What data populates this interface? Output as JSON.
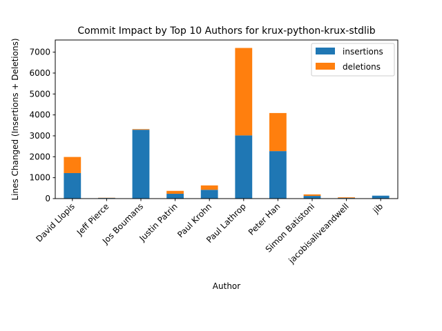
{
  "chart_data": {
    "type": "bar",
    "stacked": true,
    "title": "Commit Impact by Top 10 Authors for krux-python-krux-stdlib",
    "xlabel": "Author",
    "ylabel": "Lines Changed (Insertions + Deletions)",
    "categories": [
      "David Llopis",
      "Jeff Pierce",
      "Jos Boumans",
      "Justin Patrin",
      "Paul Krohn",
      "Paul Lathrop",
      "Peter Han",
      "Simon Batistoni",
      "jacobisaliveandwell",
      "jib"
    ],
    "series": [
      {
        "name": "insertions",
        "color": "#1f77b4",
        "values": [
          1220,
          30,
          3290,
          230,
          420,
          3020,
          2270,
          130,
          30,
          140
        ]
      },
      {
        "name": "deletions",
        "color": "#ff7f0e",
        "values": [
          770,
          10,
          30,
          140,
          210,
          4180,
          1820,
          70,
          30,
          0
        ]
      }
    ],
    "ylim": [
      0,
      7580
    ],
    "yticks": [
      0,
      1000,
      2000,
      3000,
      4000,
      5000,
      6000,
      7000
    ],
    "ytick_labels": [
      "0",
      "1000",
      "2000",
      "3000",
      "4000",
      "5000",
      "6000",
      "7000"
    ],
    "grid": false,
    "legend_position": "top-right"
  }
}
